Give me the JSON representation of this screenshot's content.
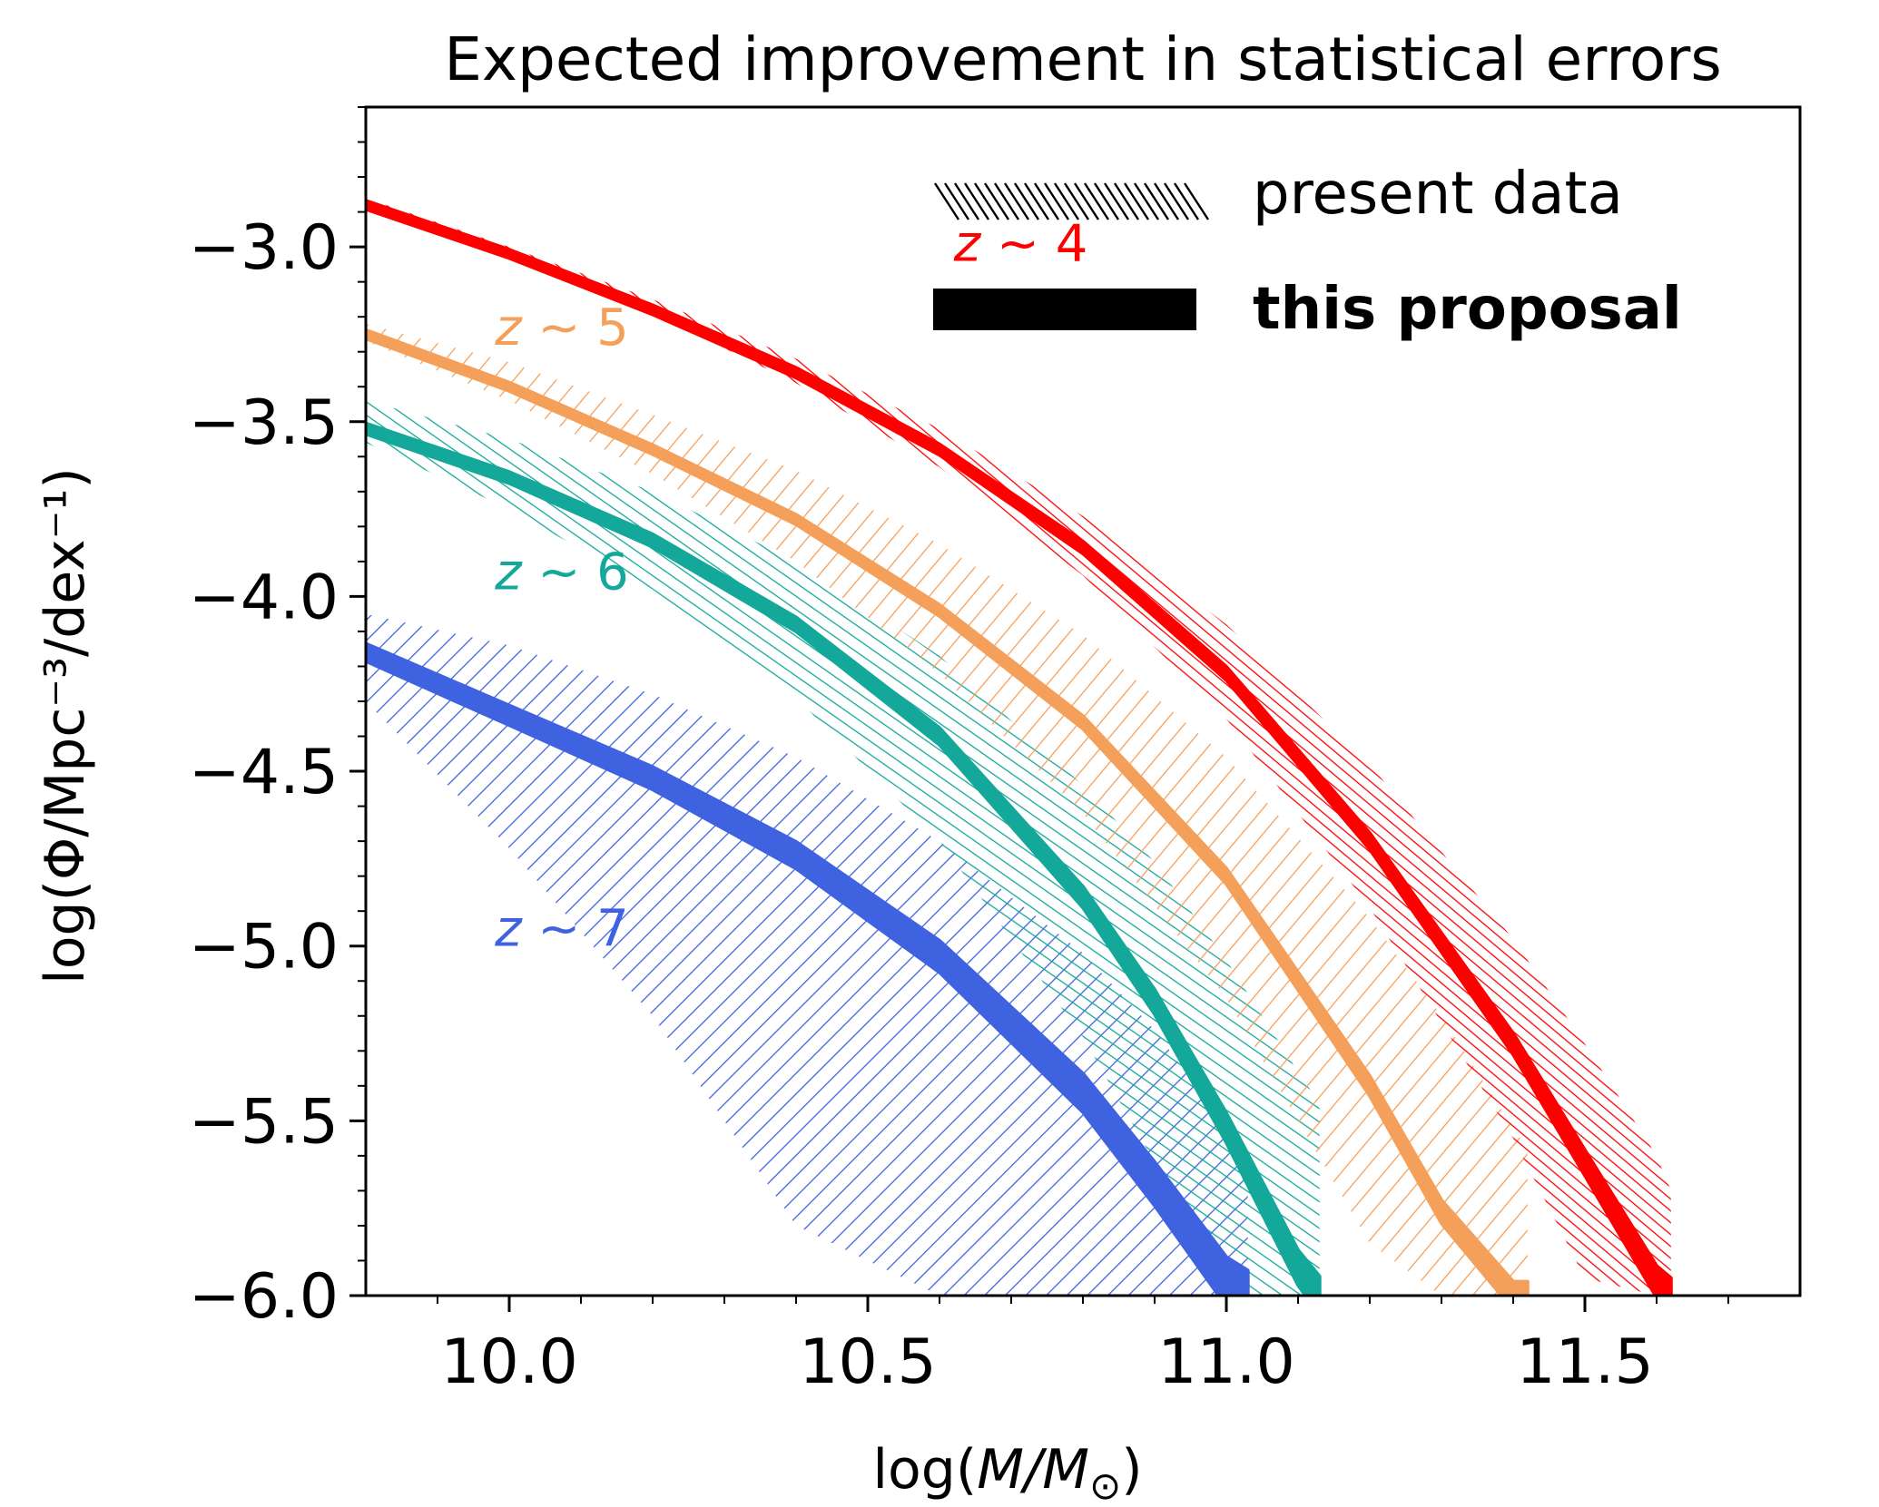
{
  "chart_data": {
    "type": "line",
    "title": "Expected improvement in statistical errors",
    "xlabel_main": "log(",
    "xlabel_var": "M/M",
    "xlabel_sub": "⊙",
    "xlabel_end": ")",
    "ylabel": "log(Φ/Mpc⁻³/dex⁻¹)",
    "xlim": [
      9.8,
      11.8
    ],
    "ylim": [
      -6.0,
      -2.6
    ],
    "xticks": [
      10.0,
      10.5,
      11.0,
      11.5
    ],
    "xtick_labels": [
      "10.0",
      "10.5",
      "11.0",
      "11.5"
    ],
    "yticks": [
      -3.0,
      -3.5,
      -4.0,
      -4.5,
      -5.0,
      -5.5,
      -6.0
    ],
    "ytick_labels": [
      "−3.0",
      "−3.5",
      "−4.0",
      "−4.5",
      "−5.0",
      "−5.5",
      "−6.0"
    ],
    "grid": false,
    "legend_position": "top-right",
    "legend": [
      {
        "label": "present data",
        "style": "hatched"
      },
      {
        "label": "this proposal",
        "style": "solid"
      }
    ],
    "series": [
      {
        "name": "z ~ 4",
        "label_tilde": "~",
        "label_num": "4",
        "color": "#ff0000",
        "x": [
          9.8,
          10.0,
          10.2,
          10.4,
          10.6,
          10.8,
          11.0,
          11.2,
          11.4,
          11.5,
          11.6,
          11.62
        ],
        "y": [
          -2.88,
          -3.02,
          -3.18,
          -3.36,
          -3.58,
          -3.86,
          -4.22,
          -4.7,
          -5.28,
          -5.62,
          -5.96,
          -6.0
        ],
        "present_lower": [
          -2.88,
          -3.02,
          -3.19,
          -3.39,
          -3.63,
          -3.94,
          -4.35,
          -4.89,
          -5.55,
          -5.95,
          -6.0,
          -6.0
        ],
        "present_upper": [
          -2.86,
          -3.0,
          -3.15,
          -3.32,
          -3.52,
          -3.77,
          -4.08,
          -4.48,
          -4.98,
          -5.28,
          -5.6,
          -5.7
        ],
        "proposal_halfwidth": [
          0.012,
          0.012,
          0.013,
          0.014,
          0.015,
          0.017,
          0.019,
          0.023,
          0.03,
          0.036,
          0.045,
          0.05
        ]
      },
      {
        "name": "z ~ 5",
        "label_tilde": "~",
        "label_num": "5",
        "color": "#f5a05a",
        "x": [
          9.8,
          10.0,
          10.2,
          10.4,
          10.6,
          10.8,
          11.0,
          11.2,
          11.3,
          11.4,
          11.42
        ],
        "y": [
          -3.25,
          -3.4,
          -3.58,
          -3.78,
          -4.04,
          -4.36,
          -4.8,
          -5.4,
          -5.76,
          -6.0,
          -6.0
        ],
        "present_lower": [
          -3.27,
          -3.44,
          -3.65,
          -3.9,
          -4.22,
          -4.62,
          -5.15,
          -5.85,
          -6.0,
          -6.0,
          -6.0
        ],
        "present_upper": [
          -3.22,
          -3.33,
          -3.48,
          -3.64,
          -3.85,
          -4.11,
          -4.46,
          -4.92,
          -5.2,
          -5.52,
          -5.58
        ],
        "proposal_halfwidth": [
          0.012,
          0.012,
          0.013,
          0.014,
          0.016,
          0.018,
          0.022,
          0.028,
          0.033,
          0.04,
          0.04
        ]
      },
      {
        "name": "z ~ 6",
        "label_tilde": "~",
        "label_num": "6",
        "color": "#14a89a",
        "x": [
          9.8,
          10.0,
          10.2,
          10.4,
          10.6,
          10.8,
          10.9,
          11.0,
          11.1,
          11.13
        ],
        "y": [
          -3.52,
          -3.66,
          -3.84,
          -4.08,
          -4.4,
          -4.86,
          -5.16,
          -5.52,
          -5.92,
          -6.0
        ],
        "present_lower": [
          -3.56,
          -3.75,
          -3.98,
          -4.29,
          -4.7,
          -5.26,
          -5.62,
          -6.0,
          -6.0,
          -6.0
        ],
        "present_upper": [
          -3.44,
          -3.55,
          -3.7,
          -3.9,
          -4.17,
          -4.54,
          -4.76,
          -5.04,
          -5.36,
          -5.45
        ],
        "proposal_halfwidth": [
          0.015,
          0.016,
          0.018,
          0.02,
          0.024,
          0.03,
          0.035,
          0.042,
          0.05,
          0.055
        ]
      },
      {
        "name": "z ~ 7",
        "label_tilde": "~",
        "label_num": "7",
        "color": "#3f63e0",
        "x": [
          9.8,
          10.0,
          10.2,
          10.4,
          10.6,
          10.8,
          10.9,
          11.0,
          11.03
        ],
        "y": [
          -4.16,
          -4.34,
          -4.52,
          -4.74,
          -5.03,
          -5.42,
          -5.68,
          -5.96,
          -6.0
        ],
        "present_lower": [
          -4.3,
          -4.72,
          -5.2,
          -5.8,
          -6.0,
          -6.0,
          -6.0,
          -6.0,
          -6.0
        ],
        "present_upper": [
          -4.05,
          -4.14,
          -4.28,
          -4.46,
          -4.7,
          -5.02,
          -5.24,
          -5.52,
          -5.6
        ],
        "proposal_halfwidth": [
          0.025,
          0.028,
          0.032,
          0.038,
          0.045,
          0.055,
          0.062,
          0.07,
          0.072
        ]
      }
    ]
  }
}
